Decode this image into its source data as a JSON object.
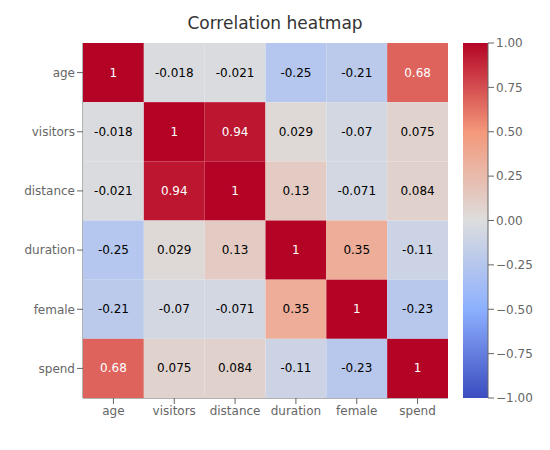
{
  "chart_data": {
    "type": "heatmap",
    "title": "Correlation heatmap",
    "categories": [
      "age",
      "visitors",
      "distance",
      "duration",
      "female",
      "spend"
    ],
    "values": [
      [
        1,
        -0.018,
        -0.021,
        -0.25,
        -0.21,
        0.68
      ],
      [
        -0.018,
        1,
        0.94,
        0.029,
        -0.07,
        0.075
      ],
      [
        -0.021,
        0.94,
        1,
        0.13,
        -0.071,
        0.084
      ],
      [
        -0.25,
        0.029,
        0.13,
        1,
        0.35,
        -0.11
      ],
      [
        -0.21,
        -0.07,
        -0.071,
        0.35,
        1,
        -0.23
      ],
      [
        0.68,
        0.075,
        0.084,
        -0.11,
        -0.23,
        1
      ]
    ],
    "data_labels": true,
    "colorbar_lim": [
      -1.0,
      1.0
    ],
    "colorbar_ticks": [
      {
        "value": 1.0,
        "label": "1.00"
      },
      {
        "value": 0.75,
        "label": "0.75"
      },
      {
        "value": 0.5,
        "label": "0.50"
      },
      {
        "value": 0.25,
        "label": "0.25"
      },
      {
        "value": 0.0,
        "label": "0.00"
      },
      {
        "value": -0.25,
        "label": "−0.25"
      },
      {
        "value": -0.5,
        "label": "−0.50"
      },
      {
        "value": -0.75,
        "label": "−0.75"
      },
      {
        "value": -1.0,
        "label": "−1.00"
      }
    ]
  }
}
